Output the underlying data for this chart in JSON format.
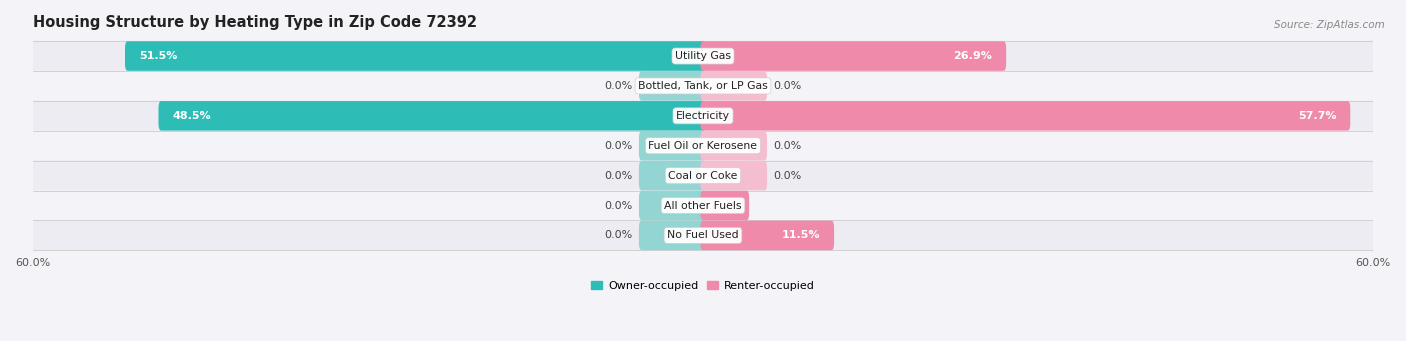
{
  "title": "Housing Structure by Heating Type in Zip Code 72392",
  "source": "Source: ZipAtlas.com",
  "categories": [
    "Utility Gas",
    "Bottled, Tank, or LP Gas",
    "Electricity",
    "Fuel Oil or Kerosene",
    "Coal or Coke",
    "All other Fuels",
    "No Fuel Used"
  ],
  "owner_values": [
    51.5,
    0.0,
    48.5,
    0.0,
    0.0,
    0.0,
    0.0
  ],
  "renter_values": [
    26.9,
    0.0,
    57.7,
    0.0,
    0.0,
    3.9,
    11.5
  ],
  "max_val": 60.0,
  "owner_color": "#2dbdb6",
  "owner_color_light": "#93d5d3",
  "renter_color": "#f08aaa",
  "renter_color_light": "#f5bdd0",
  "row_bg_even": "#ececf2",
  "row_bg_odd": "#f4f4f8",
  "fig_bg": "#f4f4f8",
  "title_fontsize": 10.5,
  "label_fontsize": 8.0,
  "tick_fontsize": 8.0,
  "bar_height": 0.52,
  "stub_size": 5.5,
  "figsize": [
    14.06,
    3.41
  ],
  "dpi": 100
}
